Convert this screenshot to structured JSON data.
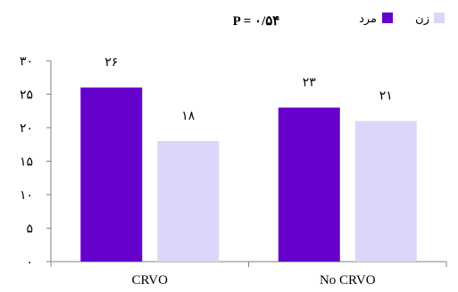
{
  "chart_data": {
    "type": "bar",
    "title": "P = ۰/۵۴",
    "categories": [
      "CRVO",
      "No CRVO"
    ],
    "series": [
      {
        "name": "مرد",
        "color": "#6600cc",
        "values": [
          26,
          23
        ],
        "labels": [
          "۲۶",
          "۲۳"
        ]
      },
      {
        "name": "زن",
        "color": "#dcd6fb",
        "values": [
          18,
          21
        ],
        "labels": [
          "۱۸",
          "۲۱"
        ]
      }
    ],
    "ylim": [
      0,
      30
    ],
    "yticks": [
      0,
      5,
      10,
      15,
      20,
      25,
      30
    ],
    "ytick_labels": [
      "۰",
      "۵",
      "۱۰",
      "۱۵",
      "۲۰",
      "۲۵",
      "۳۰"
    ],
    "xlabel": "",
    "ylabel": "",
    "grid": false,
    "legend_position": "top-right"
  }
}
